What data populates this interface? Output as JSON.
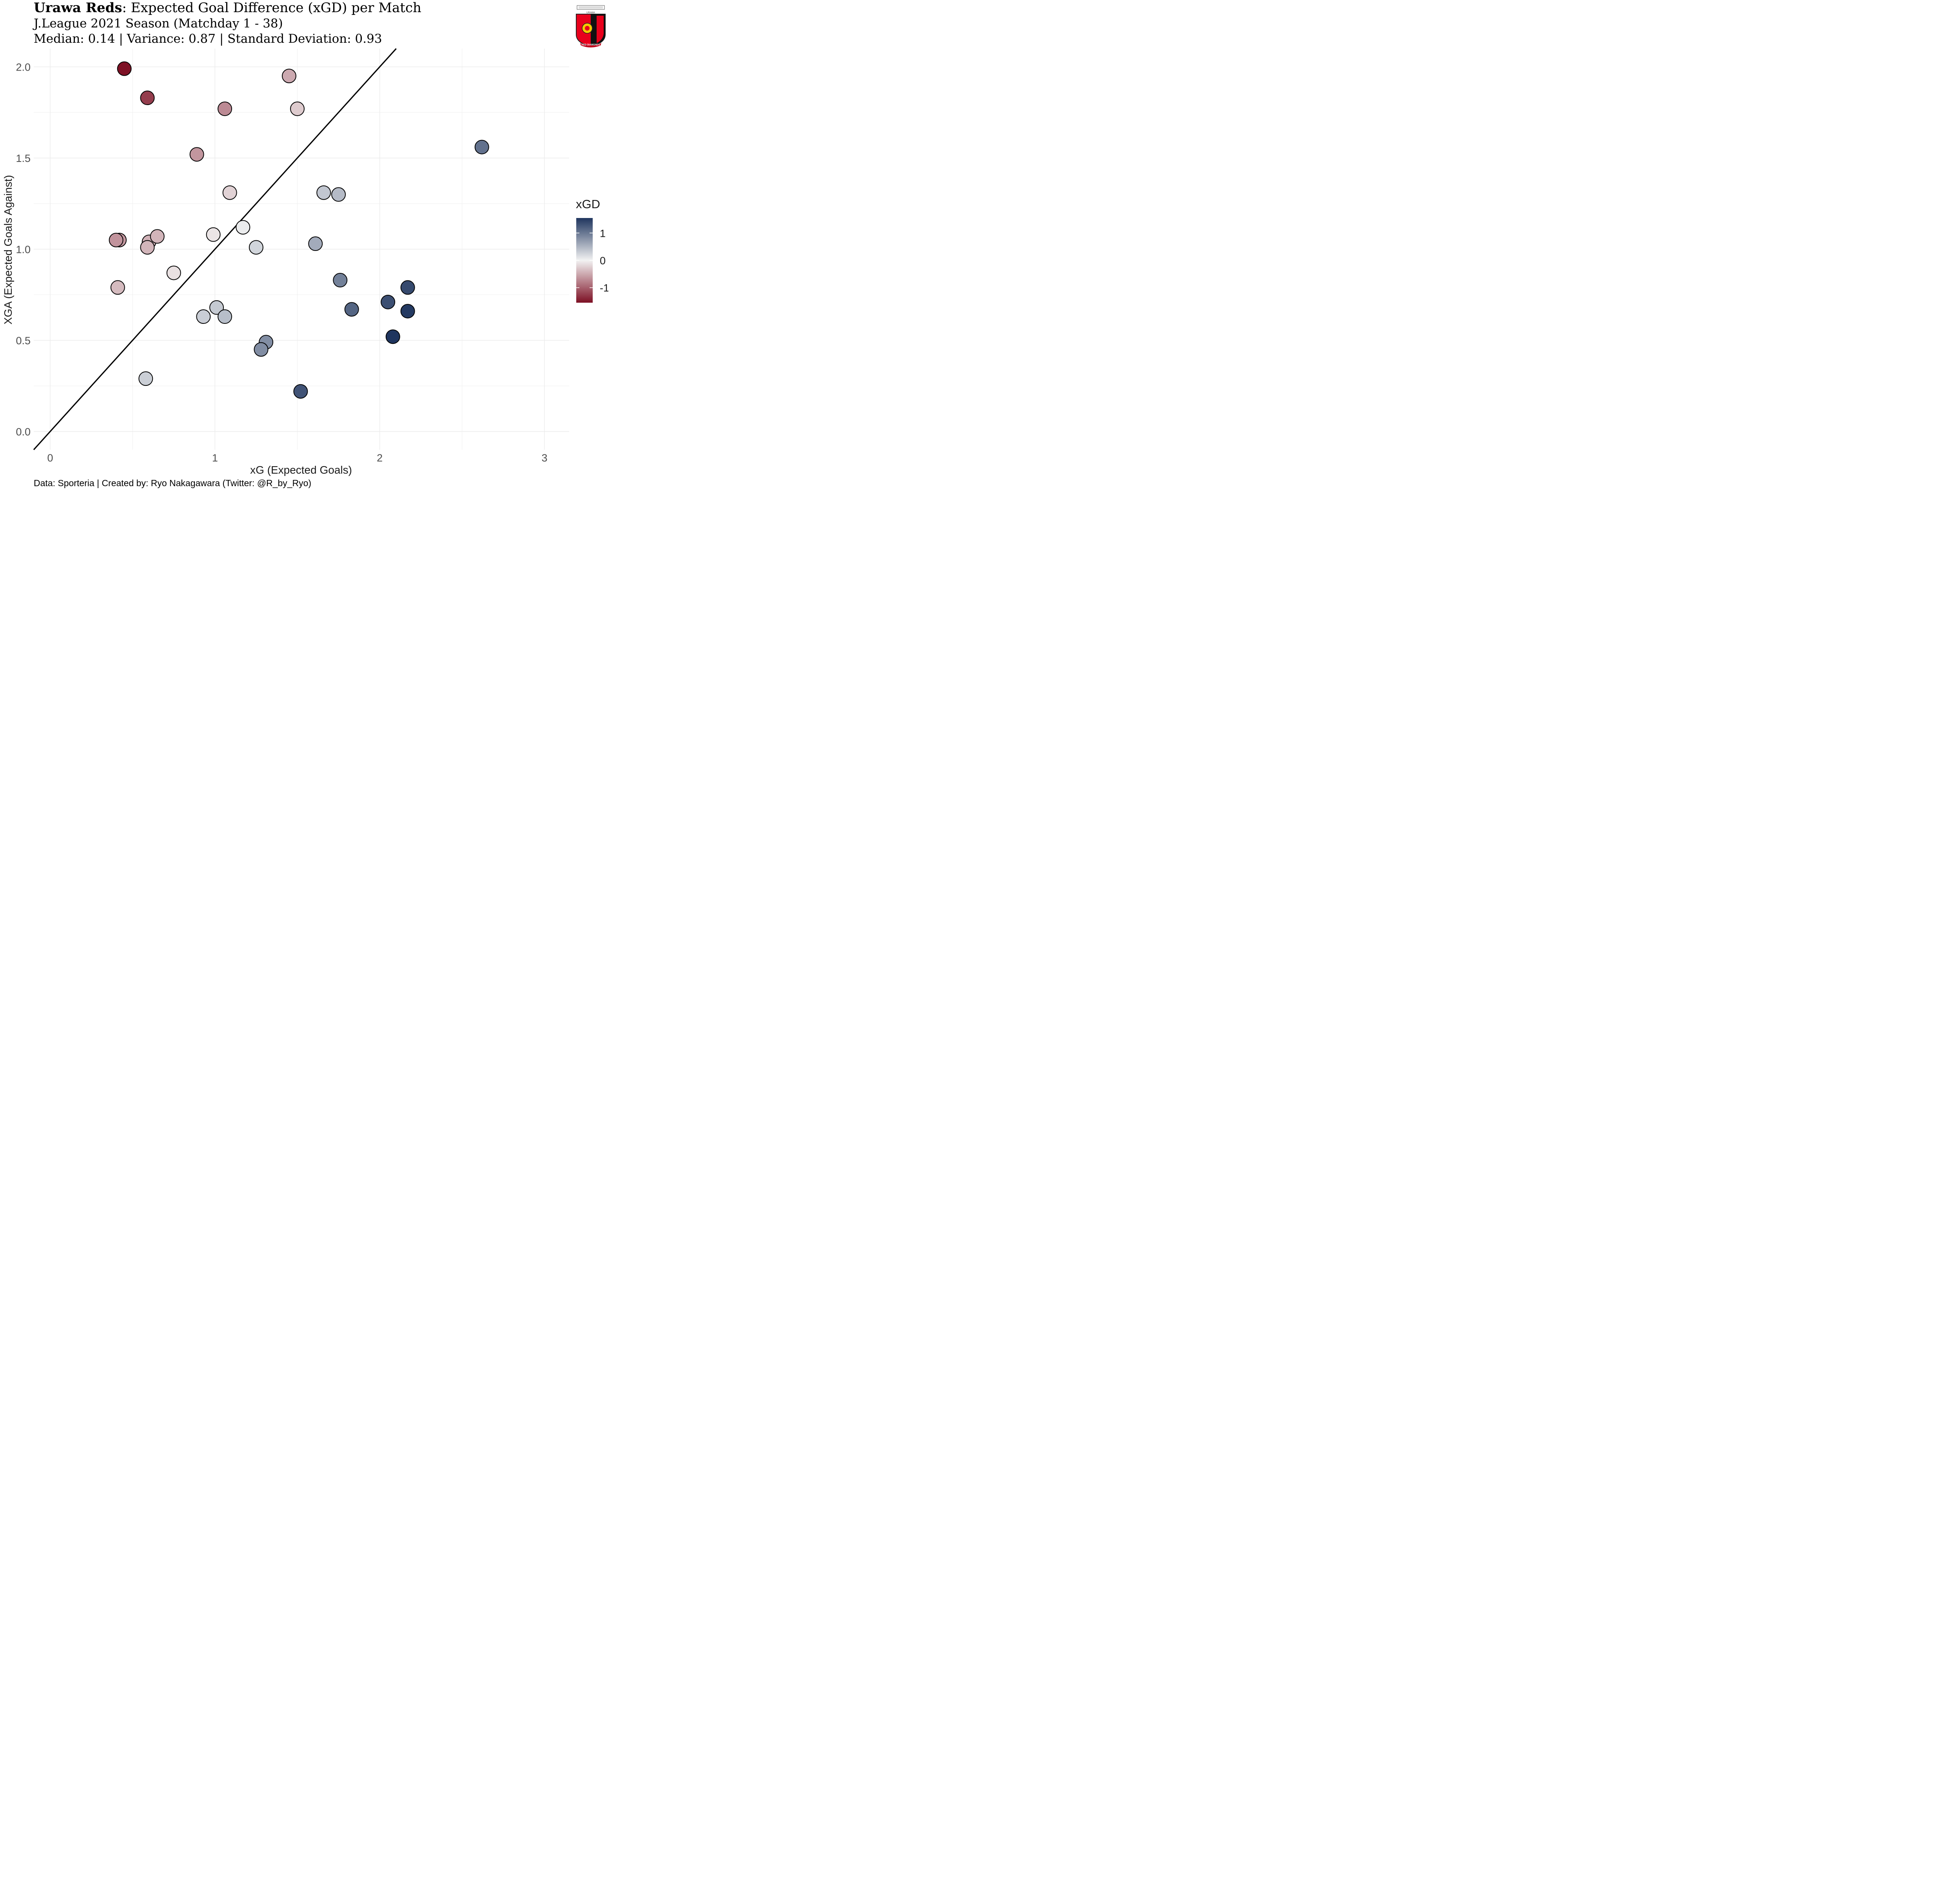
{
  "header": {
    "title_bold": "Urawa Reds",
    "title_rest": ": Expected Goal Difference (xGD) per Match",
    "subtitle_line1": "J.League 2021 Season (Matchday 1 - 38)",
    "subtitle_line2": "Median: 0.14 | Variance: 0.87 | Standard Deviation: 0.93"
  },
  "caption": "Data: Sporteria | Created by: Ryo Nakagawara (Twitter: @R_by_Ryo)",
  "logo": {
    "icon": "urawa-reds-crest-icon",
    "text": "RED DIAMONDS",
    "top_text": "URAWA"
  },
  "colors": {
    "high": "#1f355e",
    "mid": "#f2f2f2",
    "low": "#7d1024",
    "grid": "#ebebeb",
    "line": "#000000"
  },
  "chart_data": {
    "type": "scatter",
    "xlabel": "xG (Expected Goals)",
    "ylabel": "XGA (Expected Goals Against)",
    "xlim": [
      -0.1,
      3.15
    ],
    "ylim": [
      -0.1,
      2.1
    ],
    "x_ticks": [
      "0",
      "1",
      "2",
      "3"
    ],
    "y_ticks": [
      "0.0",
      "0.5",
      "1.0",
      "1.5",
      "2.0"
    ],
    "grid": true,
    "reference_line": "y = x",
    "legend": {
      "title": "xGD",
      "labels": [
        "1",
        "0",
        "-1"
      ],
      "range": [
        -1.55,
        1.55
      ],
      "position": "right"
    },
    "points": [
      {
        "x": 0.45,
        "y": 1.99
      },
      {
        "x": 0.59,
        "y": 1.83
      },
      {
        "x": 1.45,
        "y": 1.95
      },
      {
        "x": 1.06,
        "y": 1.77
      },
      {
        "x": 1.5,
        "y": 1.77
      },
      {
        "x": 0.89,
        "y": 1.52
      },
      {
        "x": 2.62,
        "y": 1.56
      },
      {
        "x": 1.09,
        "y": 1.31
      },
      {
        "x": 1.66,
        "y": 1.31
      },
      {
        "x": 1.75,
        "y": 1.3
      },
      {
        "x": 1.17,
        "y": 1.12
      },
      {
        "x": 0.99,
        "y": 1.08
      },
      {
        "x": 0.42,
        "y": 1.05
      },
      {
        "x": 0.4,
        "y": 1.05
      },
      {
        "x": 0.6,
        "y": 1.04
      },
      {
        "x": 0.65,
        "y": 1.07
      },
      {
        "x": 0.59,
        "y": 1.01
      },
      {
        "x": 1.25,
        "y": 1.01
      },
      {
        "x": 1.61,
        "y": 1.03
      },
      {
        "x": 0.75,
        "y": 0.87
      },
      {
        "x": 0.41,
        "y": 0.79
      },
      {
        "x": 1.76,
        "y": 0.83
      },
      {
        "x": 2.17,
        "y": 0.79
      },
      {
        "x": 2.05,
        "y": 0.71
      },
      {
        "x": 1.01,
        "y": 0.68
      },
      {
        "x": 0.93,
        "y": 0.63
      },
      {
        "x": 1.06,
        "y": 0.63
      },
      {
        "x": 1.83,
        "y": 0.67
      },
      {
        "x": 2.17,
        "y": 0.66
      },
      {
        "x": 2.08,
        "y": 0.52
      },
      {
        "x": 1.31,
        "y": 0.49
      },
      {
        "x": 1.28,
        "y": 0.45
      },
      {
        "x": 0.58,
        "y": 0.29
      },
      {
        "x": 1.52,
        "y": 0.22
      }
    ]
  }
}
